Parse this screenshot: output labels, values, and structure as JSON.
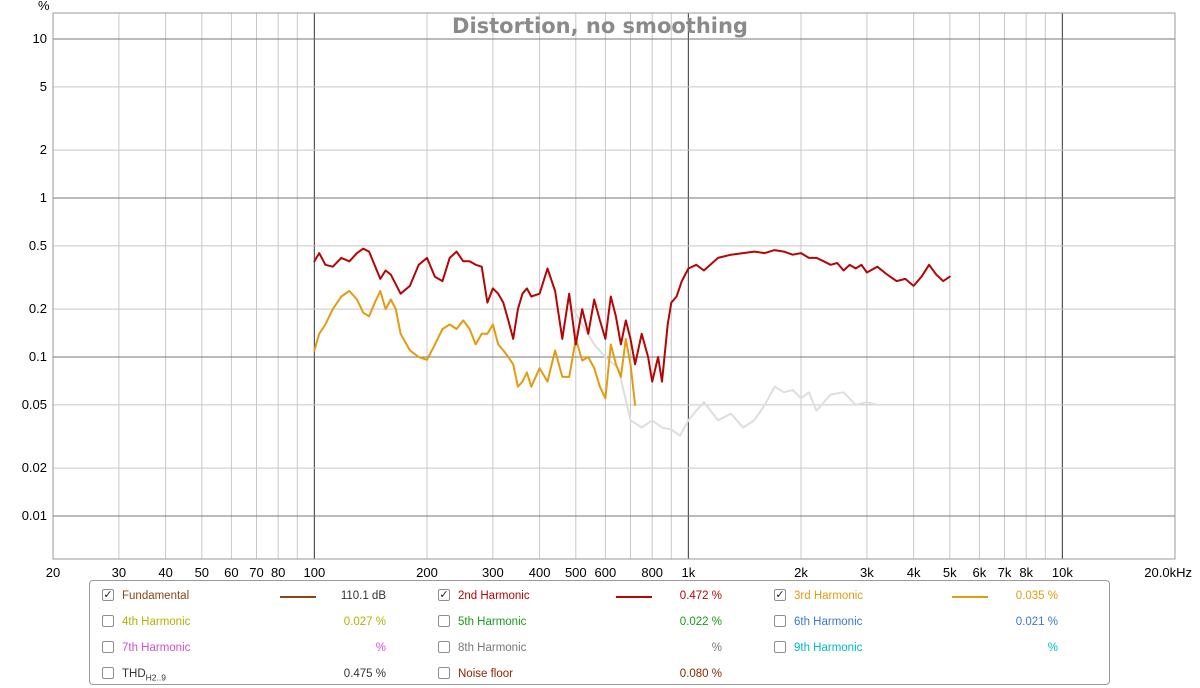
{
  "chart_data": {
    "type": "line",
    "title": "Distortion, no smoothing",
    "y_unit": "%",
    "y_scale": "log",
    "x_scale": "log",
    "xlim": [
      20,
      20000
    ],
    "ylim": [
      0.005,
      15
    ],
    "x_ticks": [
      {
        "v": 20,
        "t": "20"
      },
      {
        "v": 30,
        "t": "30"
      },
      {
        "v": 40,
        "t": "40"
      },
      {
        "v": 50,
        "t": "50"
      },
      {
        "v": 60,
        "t": "60"
      },
      {
        "v": 70,
        "t": "70"
      },
      {
        "v": 80,
        "t": "80"
      },
      {
        "v": 100,
        "t": "100"
      },
      {
        "v": 200,
        "t": "200"
      },
      {
        "v": 300,
        "t": "300"
      },
      {
        "v": 400,
        "t": "400"
      },
      {
        "v": 500,
        "t": "500"
      },
      {
        "v": 600,
        "t": "600"
      },
      {
        "v": 800,
        "t": "800"
      },
      {
        "v": 1000,
        "t": "1k"
      },
      {
        "v": 2000,
        "t": "2k"
      },
      {
        "v": 3000,
        "t": "3k"
      },
      {
        "v": 4000,
        "t": "4k"
      },
      {
        "v": 5000,
        "t": "5k"
      },
      {
        "v": 6000,
        "t": "6k"
      },
      {
        "v": 7000,
        "t": "7k"
      },
      {
        "v": 8000,
        "t": "8k"
      },
      {
        "v": 10000,
        "t": "10k"
      },
      {
        "v": 20000,
        "t": "20.0kHz"
      }
    ],
    "y_ticks": [
      {
        "v": 10,
        "t": "10"
      },
      {
        "v": 5,
        "t": "5"
      },
      {
        "v": 2,
        "t": "2"
      },
      {
        "v": 1,
        "t": "1"
      },
      {
        "v": 0.5,
        "t": "0.5"
      },
      {
        "v": 0.2,
        "t": "0.2"
      },
      {
        "v": 0.1,
        "t": "0.1"
      },
      {
        "v": 0.05,
        "t": "0.05"
      },
      {
        "v": 0.02,
        "t": "0.02"
      },
      {
        "v": 0.01,
        "t": "0.01"
      }
    ],
    "grid": true,
    "series": [
      {
        "name": "Noise floor",
        "color": "#dedede",
        "x": [
          480,
          520,
          560,
          600,
          650,
          700,
          750,
          800,
          850,
          900,
          950,
          1000,
          1050,
          1100,
          1200,
          1300,
          1400,
          1500,
          1600,
          1700,
          1800,
          1900,
          2000,
          2100,
          2200,
          2400,
          2600,
          2800,
          3000,
          3200
        ],
        "y": [
          0.22,
          0.16,
          0.12,
          0.1,
          0.085,
          0.04,
          0.036,
          0.04,
          0.036,
          0.035,
          0.032,
          0.04,
          0.046,
          0.052,
          0.04,
          0.044,
          0.036,
          0.04,
          0.05,
          0.065,
          0.06,
          0.062,
          0.055,
          0.06,
          0.046,
          0.058,
          0.06,
          0.05,
          0.052,
          0.05
        ]
      },
      {
        "name": "3rd Harmonic",
        "color": "#e39b10",
        "x": [
          100,
          103,
          107,
          112,
          118,
          124,
          130,
          135,
          140,
          145,
          150,
          155,
          160,
          165,
          170,
          180,
          190,
          200,
          210,
          220,
          230,
          240,
          250,
          260,
          270,
          280,
          290,
          300,
          310,
          320,
          330,
          340,
          350,
          360,
          370,
          380,
          400,
          420,
          440,
          460,
          480,
          500,
          520,
          540,
          560,
          580,
          600,
          620,
          640,
          660,
          680,
          700,
          720
        ],
        "y": [
          0.11,
          0.14,
          0.16,
          0.2,
          0.24,
          0.26,
          0.23,
          0.19,
          0.18,
          0.22,
          0.26,
          0.2,
          0.23,
          0.2,
          0.14,
          0.11,
          0.1,
          0.096,
          0.12,
          0.15,
          0.16,
          0.15,
          0.17,
          0.15,
          0.12,
          0.14,
          0.14,
          0.16,
          0.12,
          0.11,
          0.1,
          0.09,
          0.065,
          0.07,
          0.08,
          0.065,
          0.085,
          0.07,
          0.11,
          0.075,
          0.075,
          0.13,
          0.095,
          0.1,
          0.085,
          0.065,
          0.055,
          0.12,
          0.09,
          0.075,
          0.13,
          0.09,
          0.05
        ]
      },
      {
        "name": "2nd Harmonic",
        "color": "#b50505",
        "x": [
          100,
          103,
          107,
          112,
          118,
          124,
          130,
          135,
          140,
          150,
          155,
          160,
          170,
          180,
          190,
          200,
          210,
          220,
          230,
          240,
          250,
          260,
          270,
          280,
          290,
          300,
          310,
          320,
          330,
          340,
          350,
          360,
          370,
          380,
          400,
          420,
          440,
          460,
          480,
          500,
          520,
          540,
          560,
          580,
          600,
          620,
          640,
          660,
          680,
          700,
          720,
          750,
          780,
          800,
          830,
          850,
          880,
          900,
          930,
          960,
          1000,
          1050,
          1100,
          1200,
          1300,
          1400,
          1500,
          1600,
          1700,
          1800,
          1900,
          2000,
          2100,
          2200,
          2300,
          2400,
          2500,
          2600,
          2700,
          2800,
          2900,
          3000,
          3200,
          3400,
          3600,
          3800,
          4000,
          4200,
          4400,
          4600,
          4800,
          5000
        ],
        "y": [
          0.4,
          0.45,
          0.38,
          0.37,
          0.42,
          0.4,
          0.45,
          0.48,
          0.46,
          0.31,
          0.35,
          0.33,
          0.25,
          0.28,
          0.38,
          0.42,
          0.32,
          0.3,
          0.42,
          0.46,
          0.4,
          0.4,
          0.38,
          0.37,
          0.22,
          0.27,
          0.25,
          0.22,
          0.17,
          0.13,
          0.2,
          0.25,
          0.27,
          0.24,
          0.25,
          0.36,
          0.26,
          0.13,
          0.25,
          0.12,
          0.2,
          0.14,
          0.23,
          0.17,
          0.13,
          0.24,
          0.18,
          0.12,
          0.17,
          0.13,
          0.09,
          0.14,
          0.1,
          0.07,
          0.1,
          0.07,
          0.16,
          0.22,
          0.24,
          0.3,
          0.36,
          0.38,
          0.35,
          0.42,
          0.44,
          0.45,
          0.46,
          0.45,
          0.47,
          0.46,
          0.44,
          0.45,
          0.42,
          0.42,
          0.4,
          0.38,
          0.39,
          0.35,
          0.38,
          0.36,
          0.38,
          0.34,
          0.37,
          0.33,
          0.3,
          0.31,
          0.28,
          0.32,
          0.38,
          0.33,
          0.3,
          0.32
        ]
      }
    ]
  },
  "legend": [
    {
      "checked": true,
      "label": "Fundamental",
      "color": "#8b4513",
      "swatch": true,
      "value": "110.1 dB",
      "vcolor": "#333333"
    },
    {
      "checked": true,
      "label": "2nd Harmonic",
      "color": "#b50505",
      "swatch": true,
      "value": "0.472 %",
      "vcolor": "#b50505"
    },
    {
      "checked": true,
      "label": "3rd Harmonic",
      "color": "#e39b10",
      "swatch": true,
      "value": "0.035 %",
      "vcolor": "#e39b10"
    },
    {
      "checked": false,
      "label": "4th Harmonic",
      "color": "#b5b000",
      "swatch": false,
      "value": "0.027 %",
      "vcolor": "#b5b000"
    },
    {
      "checked": false,
      "label": "5th Harmonic",
      "color": "#1a9a1a",
      "swatch": false,
      "value": "0.022 %",
      "vcolor": "#1a9a1a"
    },
    {
      "checked": false,
      "label": "6th Harmonic",
      "color": "#3a78d0",
      "swatch": false,
      "value": "0.021 %",
      "vcolor": "#3a78d0"
    },
    {
      "checked": false,
      "label": "7th Harmonic",
      "color": "#d050d0",
      "swatch": false,
      "value": "%",
      "vcolor": "#d050d0"
    },
    {
      "checked": false,
      "label": "8th Harmonic",
      "color": "#777777",
      "swatch": false,
      "value": "%",
      "vcolor": "#777777"
    },
    {
      "checked": false,
      "label": "9th Harmonic",
      "color": "#00b8c8",
      "swatch": false,
      "value": "%",
      "vcolor": "#00b8c8"
    },
    {
      "checked": false,
      "label": "THD",
      "label_sub": "H2..9",
      "color": "#333333",
      "swatch": false,
      "value": "0.475 %",
      "vcolor": "#333333"
    },
    {
      "checked": false,
      "label": "Noise floor",
      "color": "#8b2500",
      "swatch": false,
      "value": "0.080 %",
      "vcolor": "#8b2500"
    }
  ]
}
